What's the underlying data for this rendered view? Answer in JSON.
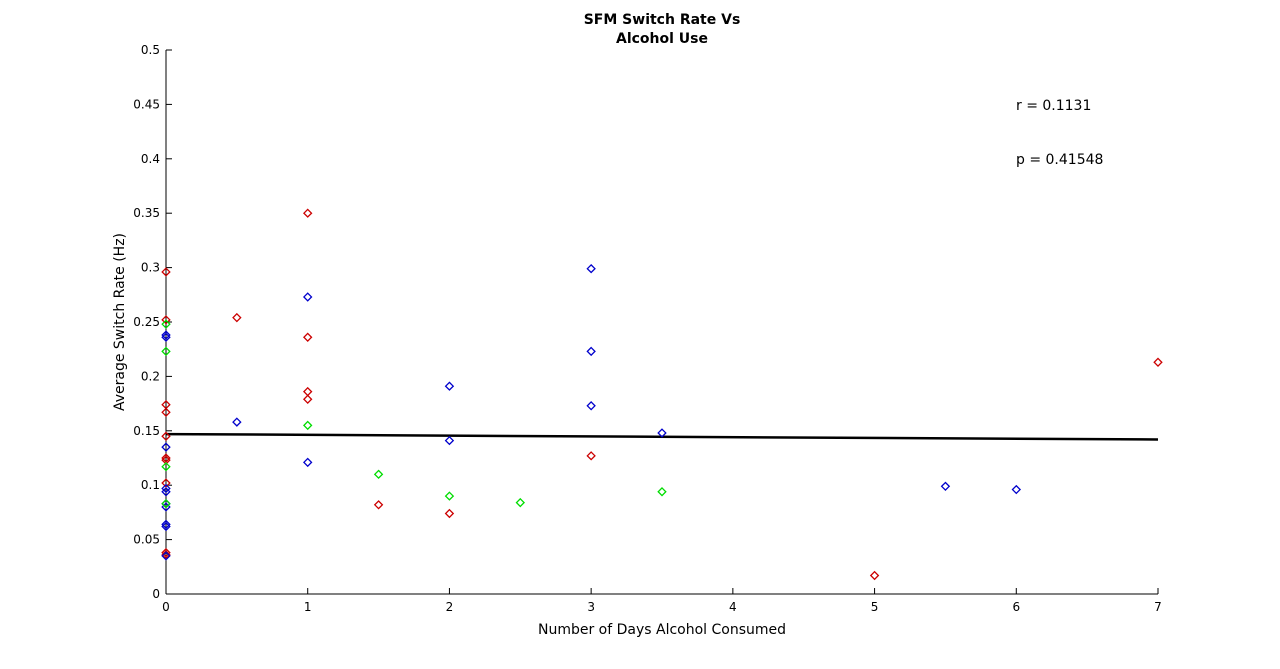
{
  "chart_data": {
    "type": "scatter",
    "title": [
      "SFM Switch Rate Vs",
      "Alcohol Use"
    ],
    "xlabel": "Number of Days Alcohol Consumed",
    "ylabel": "Average Switch Rate (Hz)",
    "xlim": [
      0,
      7
    ],
    "ylim": [
      0,
      0.5
    ],
    "xticks": [
      0,
      1,
      2,
      3,
      4,
      5,
      6,
      7
    ],
    "yticks": [
      0,
      0.05,
      0.1,
      0.15,
      0.2,
      0.25,
      0.3,
      0.35,
      0.4,
      0.45,
      0.5
    ],
    "grid": false,
    "annotations": [
      "r = 0.1131",
      "p = 0.41548"
    ],
    "fit_line": {
      "x": [
        0,
        7
      ],
      "y": [
        0.147,
        0.142
      ],
      "color": "#000000"
    },
    "series": [
      {
        "color": "#cc0000",
        "points": [
          [
            0,
            0.296
          ],
          [
            0,
            0.252
          ],
          [
            0,
            0.174
          ],
          [
            0,
            0.167
          ],
          [
            0,
            0.145
          ],
          [
            0,
            0.125
          ],
          [
            0,
            0.123
          ],
          [
            0,
            0.102
          ],
          [
            0,
            0.038
          ],
          [
            0,
            0.036
          ],
          [
            0.5,
            0.254
          ],
          [
            1,
            0.35
          ],
          [
            1,
            0.236
          ],
          [
            1,
            0.186
          ],
          [
            1,
            0.179
          ],
          [
            1.5,
            0.082
          ],
          [
            2,
            0.074
          ],
          [
            3,
            0.127
          ],
          [
            5,
            0.017
          ],
          [
            7,
            0.213
          ]
        ]
      },
      {
        "color": "#0000cc",
        "points": [
          [
            0,
            0.238
          ],
          [
            0,
            0.236
          ],
          [
            0,
            0.135
          ],
          [
            0,
            0.097
          ],
          [
            0,
            0.094
          ],
          [
            0,
            0.083
          ],
          [
            0,
            0.08
          ],
          [
            0,
            0.064
          ],
          [
            0,
            0.062
          ],
          [
            0,
            0.035
          ],
          [
            0.5,
            0.158
          ],
          [
            1,
            0.273
          ],
          [
            1,
            0.121
          ],
          [
            2,
            0.191
          ],
          [
            2,
            0.141
          ],
          [
            3,
            0.299
          ],
          [
            3,
            0.223
          ],
          [
            3,
            0.173
          ],
          [
            3.5,
            0.148
          ],
          [
            5.5,
            0.099
          ],
          [
            6,
            0.096
          ]
        ]
      },
      {
        "color": "#00dd00",
        "points": [
          [
            0,
            0.248
          ],
          [
            0,
            0.223
          ],
          [
            0,
            0.117
          ],
          [
            0,
            0.083
          ],
          [
            1,
            0.155
          ],
          [
            1.5,
            0.11
          ],
          [
            2,
            0.09
          ],
          [
            2.5,
            0.084
          ],
          [
            3.5,
            0.094
          ]
        ]
      }
    ]
  }
}
